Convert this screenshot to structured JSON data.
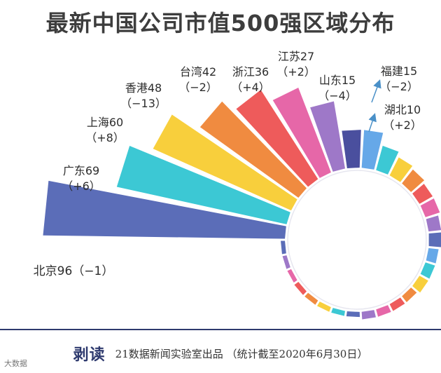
{
  "chart_data": {
    "type": "radial-bar",
    "title": "最新中国公司市值500强区域分布",
    "labeled": [
      {
        "name": "北京",
        "value": 96,
        "change": "−1",
        "color": "#5b6db8"
      },
      {
        "name": "广东",
        "value": 69,
        "change": "+6",
        "color": "#3cc8d4"
      },
      {
        "name": "上海",
        "value": 60,
        "change": "+8",
        "color": "#f8cf3c"
      },
      {
        "name": "香港",
        "value": 48,
        "change": "−13",
        "color": "#f08b40"
      },
      {
        "name": "台湾",
        "value": 42,
        "change": "−2",
        "color": "#ee5b5b"
      },
      {
        "name": "浙江",
        "value": 36,
        "change": "+4",
        "color": "#e667a8"
      },
      {
        "name": "江苏",
        "value": 27,
        "change": "+2",
        "color": "#9e78c8"
      },
      {
        "name": "山东",
        "value": 15,
        "change": "−4",
        "color": "#4a4f9e"
      },
      {
        "name": "福建",
        "value": 15,
        "change": "−2",
        "color": "#66a8e8"
      },
      {
        "name": "湖北",
        "value": 10,
        "change": "+2",
        "color": "#3cc8d4"
      }
    ],
    "small_values": [
      8,
      7,
      6,
      6,
      5,
      5,
      4,
      4,
      4,
      3,
      3,
      3,
      3,
      2,
      2,
      2,
      2,
      2,
      1,
      1,
      1
    ],
    "small_colors": [
      "#f8cf3c",
      "#f08b40",
      "#ee5b5b",
      "#e667a8",
      "#9e78c8",
      "#5b6db8",
      "#66a8e8",
      "#3cc8d4",
      "#f8cf3c",
      "#f08b40",
      "#ee5b5b",
      "#e667a8",
      "#9e78c8",
      "#5b6db8",
      "#3cc8d4",
      "#f8cf3c",
      "#f08b40",
      "#ee5b5b",
      "#e667a8",
      "#9e78c8",
      "#5b6db8"
    ]
  },
  "footer": {
    "brand": "剥读",
    "note": "21数据新闻实验室出品 （统计截至2020年6月30日）",
    "corner": "大数据"
  }
}
